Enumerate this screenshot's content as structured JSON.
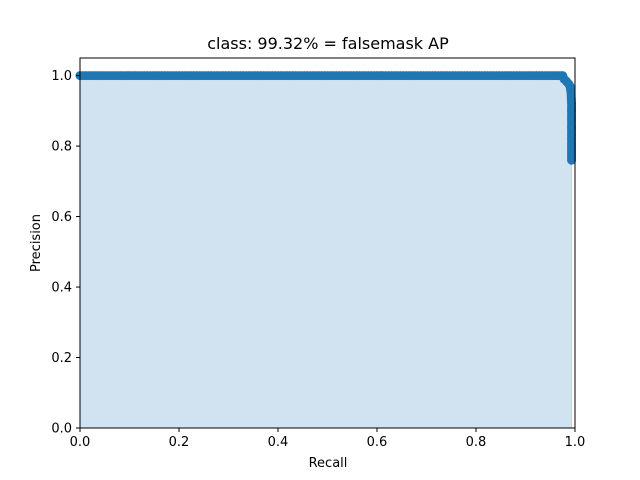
{
  "chart_data": {
    "type": "area",
    "title": "class: 99.32% = falsemask AP",
    "xlabel": "Recall",
    "ylabel": "Precision",
    "xlim": [
      0.0,
      1.0
    ],
    "ylim": [
      0.0,
      1.05
    ],
    "xticks": [
      "0.0",
      "0.2",
      "0.4",
      "0.6",
      "0.8",
      "1.0"
    ],
    "yticks": [
      "0.0",
      "0.2",
      "0.4",
      "0.6",
      "0.8",
      "1.0"
    ],
    "grid": false,
    "colors": {
      "line": "#1f77b4",
      "fill": "#d1e3f0",
      "edge": "#f4c0c0"
    },
    "series": [
      {
        "recall": [
          0.0,
          0.1,
          0.2,
          0.3,
          0.4,
          0.5,
          0.6,
          0.7,
          0.8,
          0.9,
          0.95,
          0.975,
          0.978,
          0.982,
          0.985,
          0.988,
          0.99,
          0.992,
          0.993,
          0.993,
          0.993,
          0.993,
          0.993,
          0.993,
          0.993
        ],
        "precision": [
          1.0,
          1.0,
          1.0,
          1.0,
          1.0,
          1.0,
          1.0,
          1.0,
          1.0,
          1.0,
          1.0,
          1.0,
          0.99,
          0.985,
          0.98,
          0.975,
          0.97,
          0.95,
          0.92,
          0.89,
          0.86,
          0.83,
          0.8,
          0.78,
          0.76
        ]
      }
    ]
  }
}
